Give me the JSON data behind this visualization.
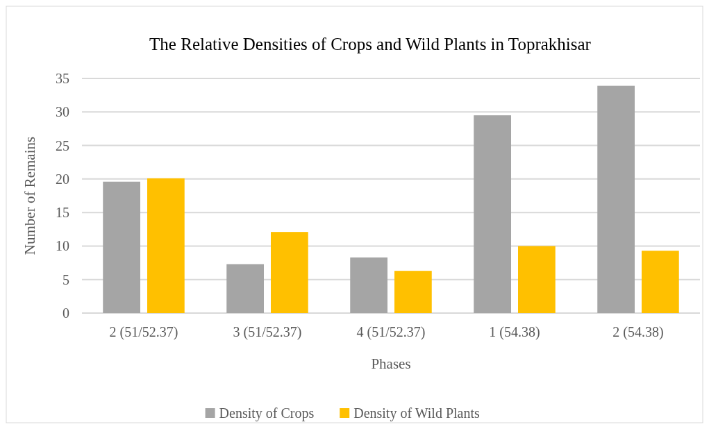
{
  "chart_data": {
    "type": "bar",
    "title": "The Relative Densities of Crops and Wild Plants in Toprakhisar",
    "xlabel": "Phases",
    "ylabel": "Number of Remains",
    "categories": [
      "2 (51/52.37)",
      "3 (51/52.37)",
      "4 (51/52.37)",
      "1 (54.38)",
      "2 (54.38)"
    ],
    "series": [
      {
        "name": "Density of Crops",
        "color": "#a5a5a5",
        "values": [
          19.6,
          7.3,
          8.3,
          29.5,
          33.9
        ]
      },
      {
        "name": "Density of Wild Plants",
        "color": "#ffc000",
        "values": [
          20.1,
          12.1,
          6.3,
          10.0,
          9.3
        ]
      }
    ],
    "ylim": [
      0,
      35
    ],
    "yticks": [
      0,
      5,
      10,
      15,
      20,
      25,
      30,
      35
    ],
    "grid": "y",
    "legend": "bottom"
  }
}
